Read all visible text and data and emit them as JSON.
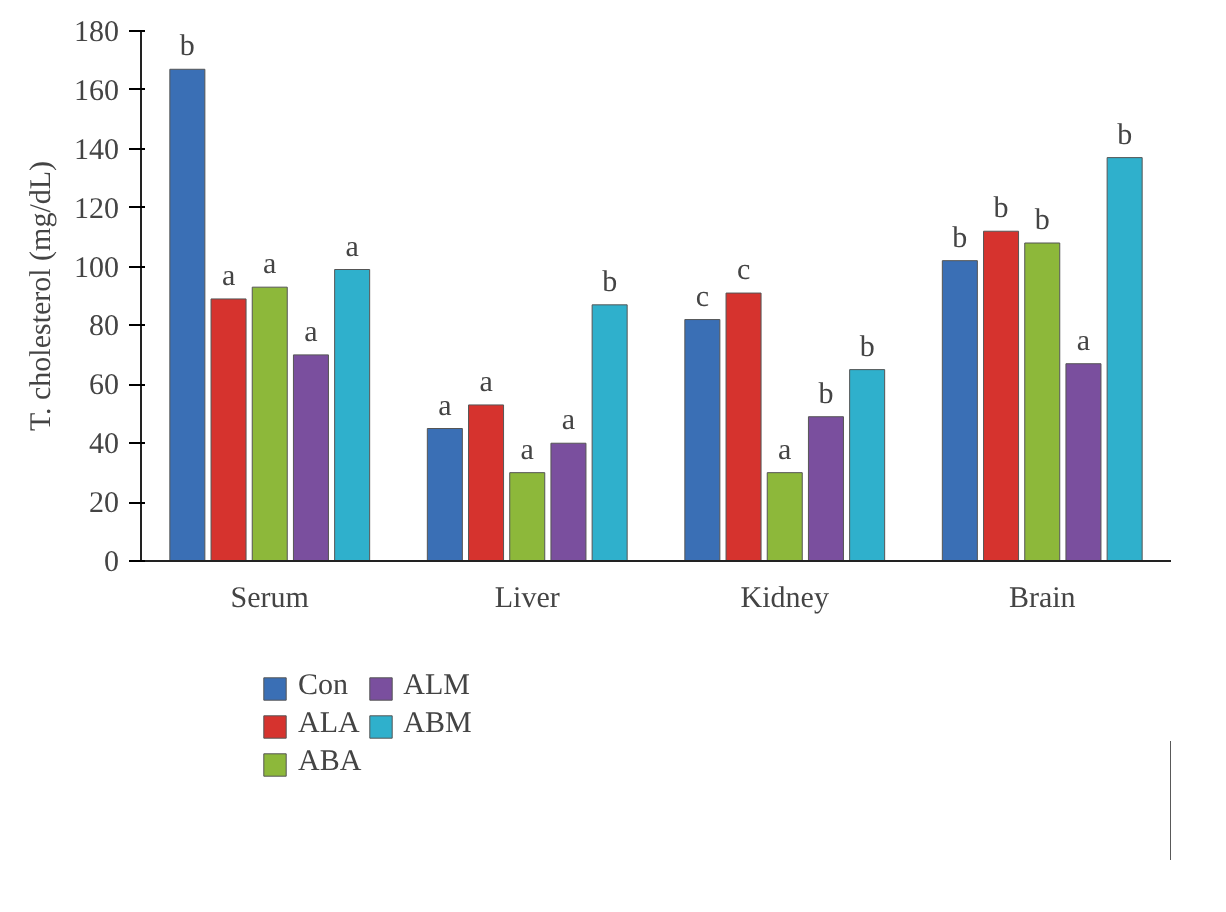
{
  "chart_data": {
    "type": "bar",
    "ylabel": "T. cholesterol (mg/dL)",
    "categories": [
      "Serum",
      "Liver",
      "Kidney",
      "Brain"
    ],
    "series": [
      {
        "name": "Con",
        "color": "#3a6fb5",
        "values": [
          167,
          45,
          82,
          102
        ],
        "value_labels": [
          "b",
          "a",
          "c",
          "b"
        ]
      },
      {
        "name": "ALA",
        "color": "#d6332e",
        "values": [
          89,
          53,
          91,
          112
        ],
        "value_labels": [
          "a",
          "a",
          "c",
          "b"
        ]
      },
      {
        "name": "ABA",
        "color": "#8db83a",
        "values": [
          93,
          30,
          30,
          108
        ],
        "value_labels": [
          "a",
          "a",
          "a",
          "b"
        ]
      },
      {
        "name": "ALM",
        "color": "#7a4f9e",
        "values": [
          70,
          40,
          49,
          67
        ],
        "value_labels": [
          "a",
          "a",
          "b",
          "a"
        ]
      },
      {
        "name": "ABM",
        "color": "#2fb0cc",
        "values": [
          99,
          87,
          65,
          137
        ],
        "value_labels": [
          "a",
          "b",
          "b",
          "b"
        ]
      }
    ],
    "ylim": [
      0,
      180
    ],
    "yticks": [
      0,
      20,
      40,
      60,
      80,
      100,
      120,
      140,
      160,
      180
    ],
    "grid": false,
    "legend": "bottom"
  }
}
